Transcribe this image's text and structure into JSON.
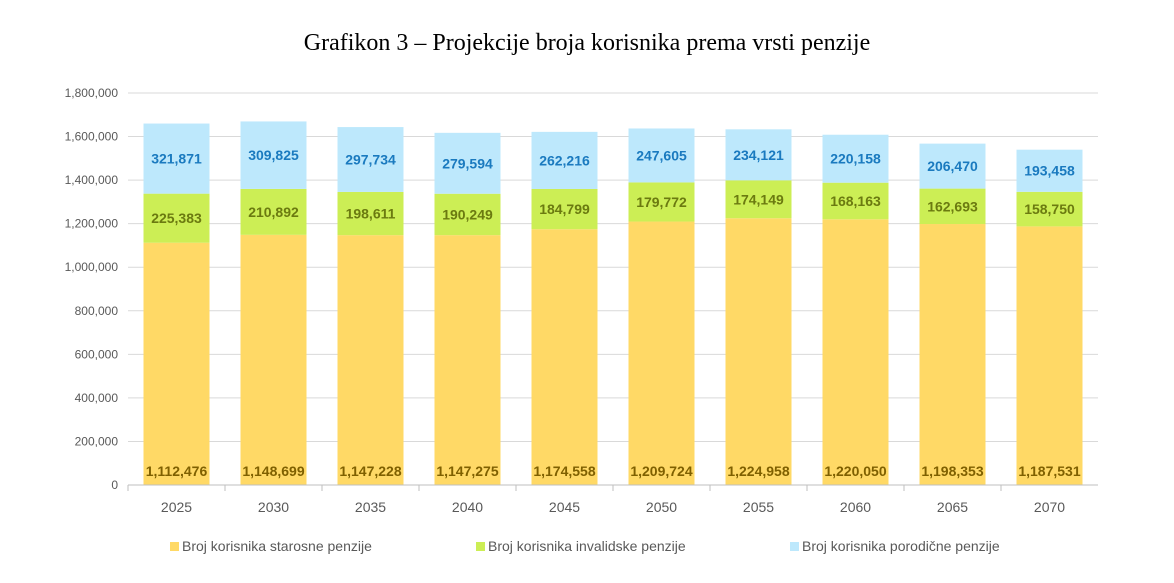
{
  "chart_data": {
    "type": "bar",
    "stacked": true,
    "title": "Grafikon 3 – Projekcije broja korisnika prema vrsti penzije",
    "categories": [
      "2025",
      "2030",
      "2035",
      "2040",
      "2045",
      "2050",
      "2055",
      "2060",
      "2065",
      "2070"
    ],
    "series": [
      {
        "name": "Broj korisnika starosne penzije",
        "color": "#FFD966",
        "label_color": "#7F6000",
        "values": [
          1112476,
          1148699,
          1147228,
          1147275,
          1174558,
          1209724,
          1224958,
          1220050,
          1198353,
          1187531
        ]
      },
      {
        "name": "Broj korisnika invalidske penzije",
        "color": "#CCEE55",
        "label_color": "#6B7A10",
        "values": [
          225383,
          210892,
          198611,
          190249,
          184799,
          179772,
          174149,
          168163,
          162693,
          158750
        ]
      },
      {
        "name": "Broj korisnika porodične penzije",
        "color": "#BDE8FC",
        "label_color": "#1A7ABF",
        "values": [
          321871,
          309825,
          297734,
          279594,
          262216,
          247605,
          234121,
          220158,
          206470,
          193458
        ]
      }
    ],
    "ylim": [
      0,
      1800000
    ],
    "yticks": [
      "0",
      "200,000",
      "400,000",
      "600,000",
      "800,000",
      "1,000,000",
      "1,200,000",
      "1,400,000",
      "1,600,000",
      "1,800,000"
    ],
    "grid": true,
    "legend": "bottom"
  }
}
